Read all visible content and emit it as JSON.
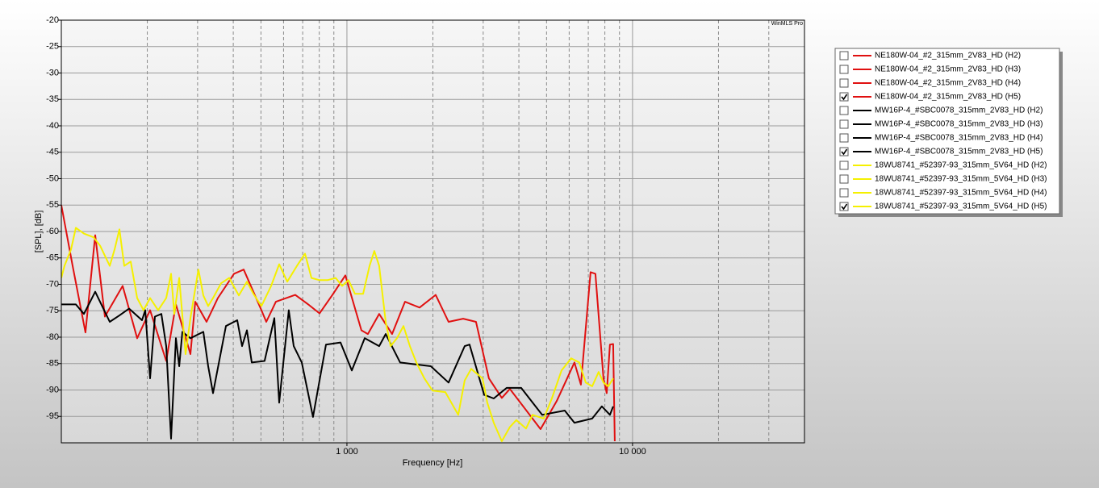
{
  "chart_data": {
    "type": "line",
    "watermark": "WinMLS Pro",
    "x_label": "Frequency [Hz]",
    "y_label": "[SPL], [dB]",
    "log_x": true,
    "grid": true,
    "xlim": [
      100,
      40000
    ],
    "ylim": [
      -100,
      -20
    ],
    "xticks": [
      {
        "value": 1000,
        "label": "1 000"
      },
      {
        "value": 10000,
        "label": "10 000"
      }
    ],
    "minor_xticks": [
      200,
      300,
      400,
      500,
      600,
      700,
      800,
      900,
      2000,
      3000,
      4000,
      5000,
      6000,
      7000,
      8000,
      9000,
      20000,
      30000
    ],
    "yticks": [
      -20,
      -25,
      -30,
      -35,
      -40,
      -45,
      -50,
      -55,
      -60,
      -65,
      -70,
      -75,
      -80,
      -85,
      -90,
      -95
    ],
    "series": [
      {
        "name": "NE180W-04_#2_315mm_2V83_HD (H2)",
        "color": "#e01010",
        "checked": false
      },
      {
        "name": "NE180W-04_#2_315mm_2V83_HD (H3)",
        "color": "#e01010",
        "checked": false
      },
      {
        "name": "NE180W-04_#2_315mm_2V83_HD (H4)",
        "color": "#e01010",
        "checked": false
      },
      {
        "name": "NE180W-04_#2_315mm_2V83_HD (H5)",
        "color": "#e01010",
        "checked": true,
        "x": [
          100,
          109.5,
          121.5,
          131.4,
          142.1,
          163.9,
          184.3,
          204.5,
          232.9,
          251.9,
          283.1,
          294.4,
          322.5,
          353.2,
          402.3,
          434.9,
          501.9,
          521.8,
          564.1,
          659.4,
          731.8,
          801.7,
          889.6,
          987.2,
          1124,
          1184,
          1297,
          1439,
          1597,
          1796,
          2045,
          2269,
          2552,
          2831,
          3142,
          3486,
          3721,
          4128,
          4764,
          5427,
          6262,
          6596,
          7132,
          7413,
          7912,
          8121,
          8333,
          8554,
          8665
        ],
        "values": [
          -55.0,
          -66.5,
          -79.1,
          -60.7,
          -76.1,
          -70.3,
          -80.2,
          -74.9,
          -84.5,
          -73.8,
          -83.2,
          -73.3,
          -77.1,
          -72.6,
          -68.0,
          -67.2,
          -74.9,
          -77.1,
          -73.3,
          -72.0,
          -73.8,
          -75.5,
          -72.0,
          -68.3,
          -78.7,
          -79.4,
          -75.6,
          -79.4,
          -73.3,
          -74.4,
          -72.0,
          -77.1,
          -76.5,
          -77.1,
          -87.8,
          -91.5,
          -89.8,
          -93.0,
          -97.4,
          -92.1,
          -84.8,
          -89.0,
          -67.7,
          -68.0,
          -87.8,
          -90.6,
          -81.4,
          -81.3,
          -99.7
        ]
      },
      {
        "name": "MW16P-4_#SBC0078_315mm_2V83_HD (H2)",
        "color": "#000000",
        "checked": false
      },
      {
        "name": "MW16P-4_#SBC0078_315mm_2V83_HD (H3)",
        "color": "#000000",
        "checked": false
      },
      {
        "name": "MW16P-4_#SBC0078_315mm_2V83_HD (H4)",
        "color": "#000000",
        "checked": false
      },
      {
        "name": "MW16P-4_#SBC0078_315mm_2V83_HD (H5)",
        "color": "#000000",
        "checked": true,
        "x": [
          100,
          112.4,
          120.0,
          131.4,
          147.7,
          159.7,
          172.7,
          191.6,
          196.7,
          204.5,
          212.7,
          224.0,
          232.9,
          242.2,
          251.9,
          258.6,
          265.4,
          283.1,
          314.2,
          326.8,
          339.8,
          377.0,
          412.9,
          429.4,
          446.4,
          464.2,
          515.0,
          556.9,
          579.0,
          626.0,
          651.0,
          694.8,
          760.9,
          844.6,
          949.3,
          1040,
          1154,
          1297,
          1367,
          1536,
          1704,
          1967,
          2269,
          2585,
          2688,
          3022,
          3267,
          3625,
          4075,
          4827,
          5790,
          6262,
          7225,
          7812,
          8333,
          8554
        ],
        "values": [
          -73.8,
          -73.8,
          -75.6,
          -71.4,
          -77.1,
          -75.9,
          -74.6,
          -76.8,
          -74.9,
          -87.8,
          -76.1,
          -75.6,
          -81.7,
          -99.2,
          -80.2,
          -85.5,
          -79.0,
          -80.2,
          -79.0,
          -85.5,
          -90.6,
          -77.9,
          -76.8,
          -81.7,
          -78.7,
          -84.8,
          -84.5,
          -76.4,
          -92.4,
          -74.9,
          -81.7,
          -84.8,
          -95.1,
          -81.4,
          -81.0,
          -86.3,
          -80.2,
          -81.7,
          -79.4,
          -84.8,
          -85.1,
          -85.5,
          -88.6,
          -81.7,
          -81.4,
          -90.9,
          -91.6,
          -89.6,
          -89.6,
          -94.7,
          -93.9,
          -96.2,
          -95.4,
          -93.1,
          -94.7,
          -93.1
        ]
      },
      {
        "name": "18WU8741_#52397-93_315mm_5V64_HD (H2)",
        "color": "#f5f000",
        "checked": false
      },
      {
        "name": "18WU8741_#52397-93_315mm_5V64_HD (H3)",
        "color": "#f5f000",
        "checked": false
      },
      {
        "name": "18WU8741_#52397-93_315mm_5V64_HD (H4)",
        "color": "#f5f000",
        "checked": false
      },
      {
        "name": "18WU8741_#52397-93_315mm_5V64_HD (H5)",
        "color": "#f5f000",
        "checked": true,
        "x": [
          100,
          102.6,
          108.1,
          112.4,
          120.0,
          129.7,
          136.7,
          147.7,
          153.6,
          159.7,
          166.1,
          175.0,
          184.3,
          194.1,
          204.5,
          218.3,
          232.9,
          242.2,
          248.6,
          258.6,
          272.3,
          283.1,
          302.1,
          314.2,
          326.8,
          339.8,
          362.5,
          386.9,
          418.3,
          446.4,
          470.2,
          501.9,
          542.7,
          579.0,
          618.0,
          668.1,
          713.0,
          751.3,
          801.7,
          855.3,
          913.1,
          961.8,
          1013,
          1067,
          1139,
          1200,
          1247,
          1297,
          1367,
          1421,
          1497,
          1577,
          1661,
          1750,
          1867,
          1993,
          2211,
          2454,
          2585,
          2723,
          2983,
          3101,
          3267,
          3486,
          3721,
          3919,
          4238,
          4464,
          4890,
          5219,
          5642,
          6100,
          6510,
          6859,
          7225,
          7609,
          7912,
          8228,
          8554
        ],
        "values": [
          -68.8,
          -66.5,
          -63.4,
          -59.3,
          -60.4,
          -61.1,
          -62.7,
          -66.5,
          -63.4,
          -59.6,
          -66.5,
          -65.7,
          -72.6,
          -74.9,
          -72.6,
          -74.9,
          -72.6,
          -68.0,
          -75.6,
          -68.8,
          -83.2,
          -76.4,
          -67.2,
          -72.1,
          -74.1,
          -72.6,
          -69.8,
          -68.8,
          -72.1,
          -69.5,
          -71.8,
          -74.1,
          -70.3,
          -66.2,
          -69.5,
          -66.5,
          -64.2,
          -68.8,
          -69.2,
          -69.2,
          -68.8,
          -70.3,
          -69.2,
          -71.8,
          -71.8,
          -66.5,
          -63.7,
          -66.5,
          -77.1,
          -81.7,
          -80.2,
          -77.9,
          -81.7,
          -84.8,
          -87.8,
          -90.1,
          -90.4,
          -94.7,
          -88.2,
          -86.0,
          -87.8,
          -92.4,
          -96.2,
          -99.7,
          -97.0,
          -95.7,
          -97.3,
          -94.7,
          -95.4,
          -91.6,
          -86.3,
          -84.0,
          -84.8,
          -88.6,
          -89.3,
          -86.6,
          -88.6,
          -89.3,
          -87.8
        ]
      }
    ]
  }
}
